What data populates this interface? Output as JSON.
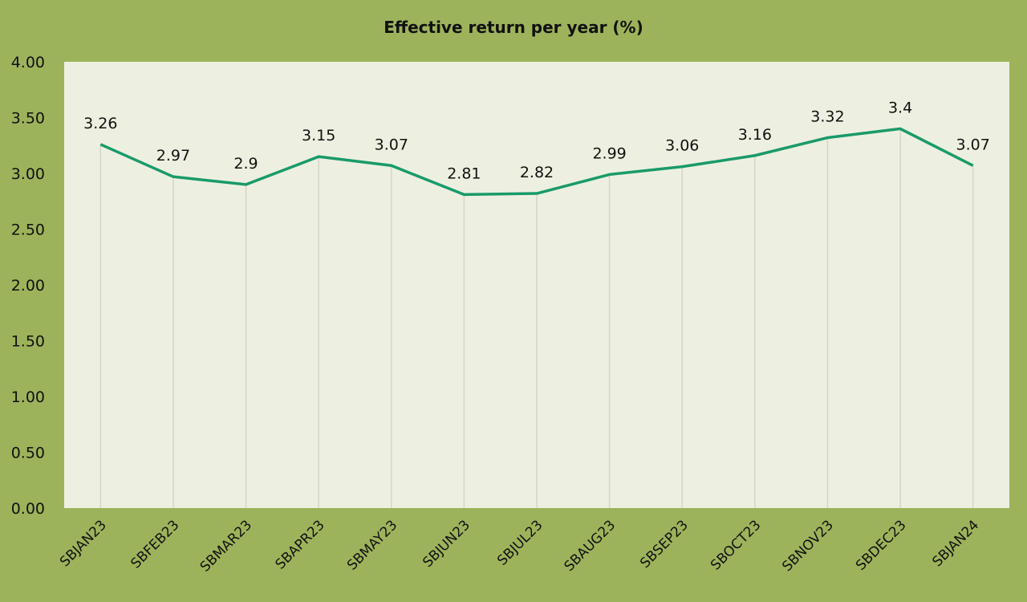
{
  "chart_data": {
    "type": "line",
    "title": "Effective return per year (%)",
    "xlabel": "",
    "ylabel": "",
    "categories": [
      "SBJAN23",
      "SBFEB23",
      "SBMAR23",
      "SBAPR23",
      "SBMAY23",
      "SBJUN23",
      "SBJUL23",
      "SBAUG23",
      "SBSEP23",
      "SBOCT23",
      "SBNOV23",
      "SBDEC23",
      "SBJAN24"
    ],
    "values": [
      3.26,
      2.97,
      2.9,
      3.15,
      3.07,
      2.81,
      2.82,
      2.99,
      3.06,
      3.16,
      3.32,
      3.4,
      3.07
    ],
    "data_labels": [
      "3.26",
      "2.97",
      "2.9",
      "3.15",
      "3.07",
      "2.81",
      "2.82",
      "2.99",
      "3.06",
      "3.16",
      "3.32",
      "3.4",
      "3.07"
    ],
    "ylim": [
      0,
      4
    ],
    "yticks": [
      "0.00",
      "0.50",
      "1.00",
      "1.50",
      "2.00",
      "2.50",
      "3.00",
      "3.50",
      "4.00"
    ],
    "grid": "vertical lines at categories",
    "legend": "none",
    "colors": {
      "background": "#9db35b",
      "plot_area": "#edf0e0",
      "line": "#1a9a6a",
      "gridline": "#d4d6cc"
    }
  }
}
